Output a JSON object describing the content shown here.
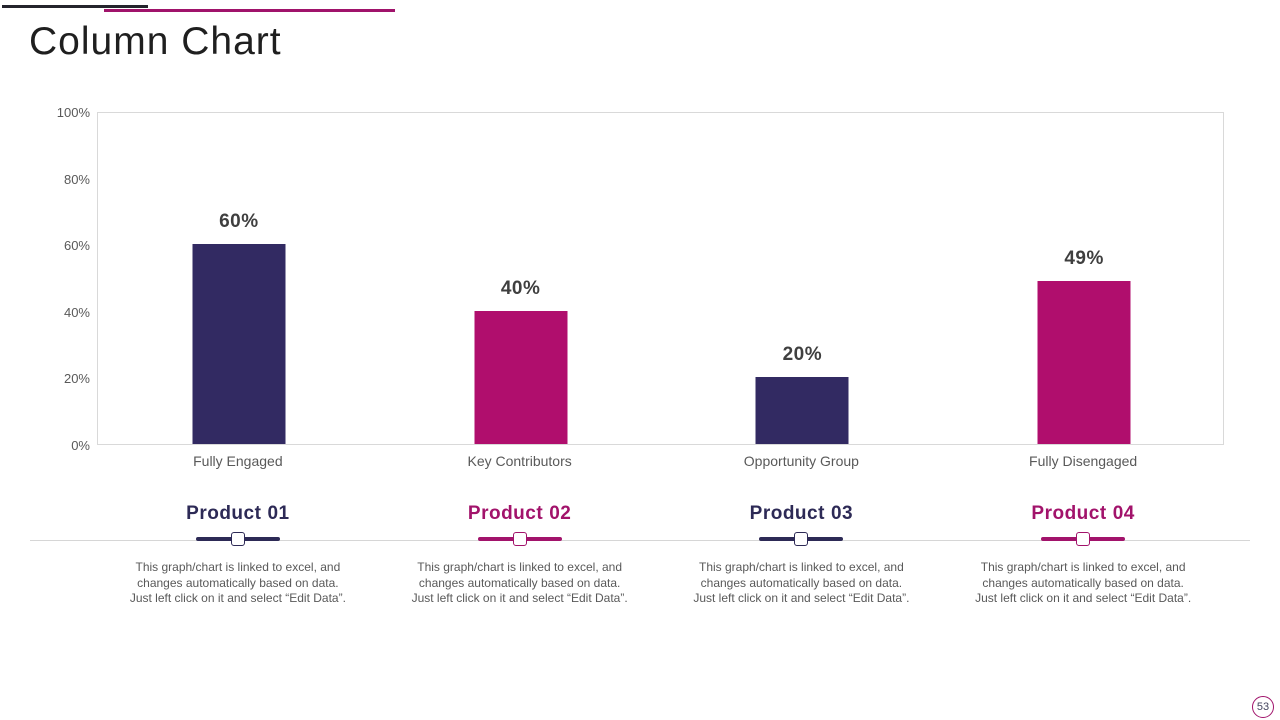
{
  "slide": {
    "title": "Column Chart",
    "page_number": "53"
  },
  "colors": {
    "navy": "#322A62",
    "magenta": "#B00E6D",
    "product_navy": "#2D2A56",
    "product_magenta": "#A2136B",
    "axis_text": "#595959",
    "value_text": "#3F3F3F",
    "accent_line": "#A0136B",
    "black_line": "#24242C"
  },
  "chart_data": {
    "type": "bar",
    "title": "Column Chart",
    "categories": [
      "Fully Engaged",
      "Key Contributors",
      "Opportunity Group",
      "Fully Disengaged"
    ],
    "values": [
      60,
      40,
      20,
      49
    ],
    "data_labels": [
      "60%",
      "40%",
      "20%",
      "49%"
    ],
    "bar_colors": [
      "#322A62",
      "#B00E6D",
      "#322A62",
      "#B00E6D"
    ],
    "xlabel": "",
    "ylabel": "",
    "ylim": [
      0,
      100
    ],
    "y_ticks": [
      100,
      80,
      60,
      40,
      20,
      0
    ],
    "y_tick_labels": [
      "100%",
      "80%",
      "60%",
      "40%",
      "20%",
      "0%"
    ],
    "grid": false,
    "legend_position": "none"
  },
  "products": [
    {
      "name": "Product",
      "number": "01",
      "color": "#2D2A56",
      "description": "This graph/chart is linked to excel, and changes automatically based on data. Just left click on it and select “Edit Data”."
    },
    {
      "name": "Product",
      "number": "02",
      "color": "#A2136B",
      "description": "This graph/chart is linked to excel, and changes automatically based on data. Just left click on it and select “Edit Data”."
    },
    {
      "name": "Product",
      "number": "03",
      "color": "#2D2A56",
      "description": "This graph/chart is linked to excel, and changes automatically based on data. Just left click on it and select “Edit Data”."
    },
    {
      "name": "Product",
      "number": "04",
      "color": "#A2136B",
      "description": "This graph/chart is linked to excel, and changes automatically based on data. Just left click on it and select “Edit Data”."
    }
  ]
}
